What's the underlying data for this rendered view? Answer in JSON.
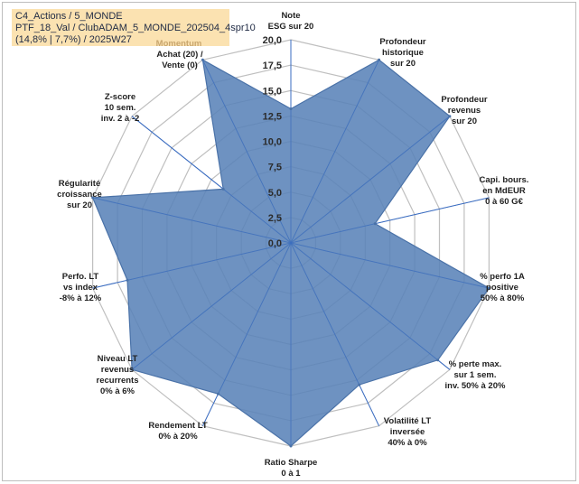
{
  "header": {
    "line1": "C4_Actions / 5_MONDE",
    "line2": "PTF_18_Val / ClubADAM_5_MONDE_202504_4spr10",
    "line3": "(14,8% | 7,7%) / 2025W27"
  },
  "momentum_label": "Momentum",
  "chart_data": {
    "type": "radar",
    "rlim": [
      0,
      20
    ],
    "ticks": [
      "0,0",
      "2,5",
      "5,0",
      "7,5",
      "10,0",
      "12,5",
      "15,0",
      "17,5",
      "20,0"
    ],
    "categories": [
      [
        "Note",
        "ESG sur 20"
      ],
      [
        "Profondeur",
        "historique",
        "sur 20"
      ],
      [
        "Profondeur",
        "revenus",
        "sur 20"
      ],
      [
        "Capi. bours.",
        "en MdEUR",
        "0 à 60 G€"
      ],
      [
        "% perfo 1A",
        "positive",
        "50% à 80%"
      ],
      [
        "% perte max.",
        "sur 1 sem.",
        "inv. 50% à 20%"
      ],
      [
        "Volatilité LT",
        "inversée",
        "40% à 0%"
      ],
      [
        "Ratio Sharpe",
        "0 à 1"
      ],
      [
        "Rendement LT",
        "0% à 20%"
      ],
      [
        "Niveau LT",
        "revenus",
        "recurrents",
        "0% à 6%"
      ],
      [
        "Perfo. LT",
        "vs index",
        "-8% à 12%"
      ],
      [
        "Régularité",
        "croissance",
        "sur 20"
      ],
      [
        "Z-score",
        "10 sem.",
        "inv. 2 à -2"
      ],
      [
        "Achat (20) /",
        "Vente (0)"
      ]
    ],
    "values": [
      13.2,
      20,
      20,
      8.5,
      20,
      18.5,
      15.5,
      20,
      16.5,
      20,
      16.5,
      20,
      8.5,
      20
    ],
    "grid": true,
    "fill_color": "#5a83b8",
    "stroke_color": "#4a72a8",
    "grid_color": "#bfbfbf",
    "axis_color": "#3b6cc0"
  }
}
